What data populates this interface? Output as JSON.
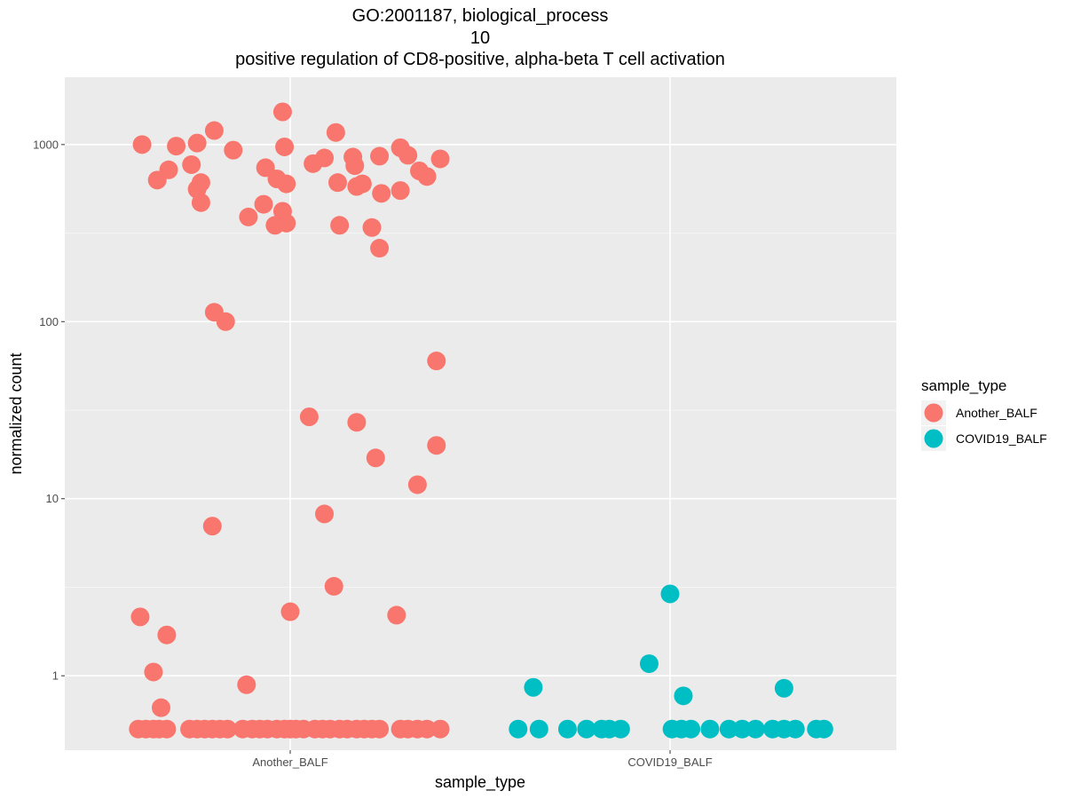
{
  "chart_data": {
    "type": "scatter",
    "title_lines": [
      "GO:2001187, biological_process",
      "10",
      "positive regulation of CD8-positive, alpha-beta T cell activation"
    ],
    "xlabel": "sample_type",
    "ylabel": "normalized count",
    "y_scale": "log10",
    "ylim": [
      0.38,
      2400
    ],
    "y_ticks": [
      1,
      10,
      100,
      1000
    ],
    "y_tick_labels": [
      "1",
      "10",
      "100",
      "1000"
    ],
    "categories": [
      "Another_BALF",
      "COVID19_BALF"
    ],
    "background_color": "#ebebeb",
    "grid": true,
    "legend": {
      "title": "sample_type",
      "position": "right",
      "entries": [
        {
          "label": "Another_BALF",
          "color": "#f8766d"
        },
        {
          "label": "COVID19_BALF",
          "color": "#00bfc4"
        }
      ]
    },
    "series": [
      {
        "name": "Another_BALF",
        "color": "#f8766d",
        "points": [
          {
            "x": -0.39,
            "y": 1000
          },
          {
            "x": -0.35,
            "y": 630
          },
          {
            "x": -0.32,
            "y": 720
          },
          {
            "x": -0.3,
            "y": 980
          },
          {
            "x": -0.26,
            "y": 770
          },
          {
            "x": -0.245,
            "y": 1020
          },
          {
            "x": -0.245,
            "y": 560
          },
          {
            "x": -0.235,
            "y": 610
          },
          {
            "x": -0.235,
            "y": 470
          },
          {
            "x": -0.2,
            "y": 1200
          },
          {
            "x": -0.15,
            "y": 930
          },
          {
            "x": -0.11,
            "y": 390
          },
          {
            "x": -0.07,
            "y": 460
          },
          {
            "x": -0.065,
            "y": 740
          },
          {
            "x": -0.035,
            "y": 640
          },
          {
            "x": -0.04,
            "y": 350
          },
          {
            "x": -0.02,
            "y": 1530
          },
          {
            "x": -0.02,
            "y": 420
          },
          {
            "x": -0.015,
            "y": 970
          },
          {
            "x": -0.01,
            "y": 600
          },
          {
            "x": -0.01,
            "y": 360
          },
          {
            "x": 0.06,
            "y": 780
          },
          {
            "x": 0.09,
            "y": 840
          },
          {
            "x": 0.12,
            "y": 1170
          },
          {
            "x": 0.125,
            "y": 610
          },
          {
            "x": 0.13,
            "y": 350
          },
          {
            "x": 0.165,
            "y": 850
          },
          {
            "x": 0.17,
            "y": 760
          },
          {
            "x": 0.175,
            "y": 580
          },
          {
            "x": 0.19,
            "y": 600
          },
          {
            "x": 0.215,
            "y": 340
          },
          {
            "x": 0.235,
            "y": 860
          },
          {
            "x": 0.235,
            "y": 260
          },
          {
            "x": 0.24,
            "y": 530
          },
          {
            "x": 0.29,
            "y": 960
          },
          {
            "x": 0.29,
            "y": 550
          },
          {
            "x": 0.31,
            "y": 870
          },
          {
            "x": 0.34,
            "y": 710
          },
          {
            "x": 0.36,
            "y": 660
          },
          {
            "x": 0.395,
            "y": 830
          },
          {
            "x": -0.2,
            "y": 113
          },
          {
            "x": -0.17,
            "y": 100
          },
          {
            "x": 0.385,
            "y": 60
          },
          {
            "x": 0.05,
            "y": 29
          },
          {
            "x": 0.175,
            "y": 27
          },
          {
            "x": 0.225,
            "y": 17
          },
          {
            "x": 0.385,
            "y": 20
          },
          {
            "x": 0.335,
            "y": 12
          },
          {
            "x": -0.205,
            "y": 7
          },
          {
            "x": 0.09,
            "y": 8.2
          },
          {
            "x": 0.115,
            "y": 3.2
          },
          {
            "x": 0.0,
            "y": 2.3
          },
          {
            "x": 0.28,
            "y": 2.2
          },
          {
            "x": -0.395,
            "y": 2.15
          },
          {
            "x": -0.325,
            "y": 1.7
          },
          {
            "x": -0.36,
            "y": 1.05
          },
          {
            "x": -0.34,
            "y": 0.66
          },
          {
            "x": -0.115,
            "y": 0.89
          },
          {
            "x": -0.4,
            "y": 0.5
          },
          {
            "x": -0.38,
            "y": 0.5
          },
          {
            "x": -0.36,
            "y": 0.5
          },
          {
            "x": -0.345,
            "y": 0.5
          },
          {
            "x": -0.325,
            "y": 0.5
          },
          {
            "x": -0.265,
            "y": 0.5
          },
          {
            "x": -0.245,
            "y": 0.5
          },
          {
            "x": -0.225,
            "y": 0.5
          },
          {
            "x": -0.205,
            "y": 0.5
          },
          {
            "x": -0.185,
            "y": 0.5
          },
          {
            "x": -0.165,
            "y": 0.5
          },
          {
            "x": -0.125,
            "y": 0.5
          },
          {
            "x": -0.1,
            "y": 0.5
          },
          {
            "x": -0.08,
            "y": 0.5
          },
          {
            "x": -0.06,
            "y": 0.5
          },
          {
            "x": -0.035,
            "y": 0.5
          },
          {
            "x": -0.015,
            "y": 0.5
          },
          {
            "x": 0.0,
            "y": 0.5
          },
          {
            "x": 0.015,
            "y": 0.5
          },
          {
            "x": 0.035,
            "y": 0.5
          },
          {
            "x": 0.065,
            "y": 0.5
          },
          {
            "x": 0.085,
            "y": 0.5
          },
          {
            "x": 0.105,
            "y": 0.5
          },
          {
            "x": 0.13,
            "y": 0.5
          },
          {
            "x": 0.15,
            "y": 0.5
          },
          {
            "x": 0.175,
            "y": 0.5
          },
          {
            "x": 0.195,
            "y": 0.5
          },
          {
            "x": 0.215,
            "y": 0.5
          },
          {
            "x": 0.235,
            "y": 0.5
          },
          {
            "x": 0.29,
            "y": 0.5
          },
          {
            "x": 0.31,
            "y": 0.5
          },
          {
            "x": 0.335,
            "y": 0.5
          },
          {
            "x": 0.36,
            "y": 0.5
          },
          {
            "x": 0.395,
            "y": 0.5
          }
        ]
      },
      {
        "name": "COVID19_BALF",
        "color": "#00bfc4",
        "points": [
          {
            "x": 1.0,
            "y": 2.9
          },
          {
            "x": 0.945,
            "y": 1.17
          },
          {
            "x": 0.64,
            "y": 0.86
          },
          {
            "x": 1.035,
            "y": 0.77
          },
          {
            "x": 1.3,
            "y": 0.85
          },
          {
            "x": 0.6,
            "y": 0.5
          },
          {
            "x": 0.655,
            "y": 0.5
          },
          {
            "x": 0.73,
            "y": 0.5
          },
          {
            "x": 0.78,
            "y": 0.5
          },
          {
            "x": 0.82,
            "y": 0.5
          },
          {
            "x": 0.84,
            "y": 0.5
          },
          {
            "x": 0.87,
            "y": 0.5
          },
          {
            "x": 1.005,
            "y": 0.5
          },
          {
            "x": 1.03,
            "y": 0.5
          },
          {
            "x": 1.055,
            "y": 0.5
          },
          {
            "x": 1.105,
            "y": 0.5
          },
          {
            "x": 1.155,
            "y": 0.5
          },
          {
            "x": 1.19,
            "y": 0.5
          },
          {
            "x": 1.225,
            "y": 0.5
          },
          {
            "x": 1.27,
            "y": 0.5
          },
          {
            "x": 1.3,
            "y": 0.5
          },
          {
            "x": 1.33,
            "y": 0.5
          },
          {
            "x": 1.385,
            "y": 0.5
          },
          {
            "x": 1.405,
            "y": 0.5
          }
        ]
      }
    ]
  }
}
